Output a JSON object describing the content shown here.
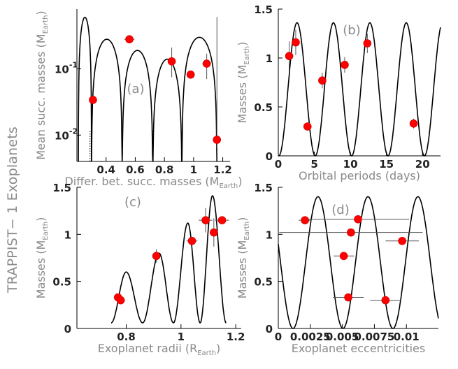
{
  "figure": {
    "side_title": "TRAPPIST− 1 Exoplanets",
    "curve_color": "#000000",
    "point_color": "#ff0000",
    "text_color": "#8a8a8a"
  },
  "chart_data": [
    {
      "panel": "a",
      "tag": "(a)",
      "type": "scatter",
      "title": "",
      "xlabel": "Differ. bet. succ. masses (M",
      "xlabel_sub": "Earth",
      "ylabel": "Mean succ. masses (M",
      "ylabel_sub": "Earth",
      "xscale": "linear",
      "yscale": "log",
      "xlim": [
        0.2,
        1.25
      ],
      "ylim": [
        0.004,
        0.8
      ],
      "xticks": [
        0.4,
        0.6,
        0.8,
        1,
        1.2
      ],
      "xtick_labels": [
        "0.4",
        "0.6",
        "0.8",
        "1",
        "1.2"
      ],
      "ytick_labels": [
        {
          "value": 0.1,
          "base": "10",
          "exp": "-1"
        },
        {
          "value": 0.01,
          "base": "10",
          "exp": "-2"
        }
      ],
      "points": [
        {
          "x": 0.31,
          "y": 0.034,
          "xerr": 0.015
        },
        {
          "x": 0.56,
          "y": 0.28,
          "xerr": 0.035
        },
        {
          "x": 0.85,
          "y": 0.13,
          "xerr": 0.0,
          "yerr_low": 0.055,
          "yerr_high": 0.08
        },
        {
          "x": 0.98,
          "y": 0.082,
          "xerr": 0.02
        },
        {
          "x": 1.09,
          "y": 0.12,
          "xerr": 0.03,
          "yerr_low": 0.05,
          "yerr_high": 0.05
        },
        {
          "x": 1.16,
          "y": 0.0085,
          "xerr": 0.0,
          "yerr_low": 0.002,
          "yerr_high": 0.6
        }
      ],
      "curve": {
        "kind": "log-arches",
        "boundaries": [
          0.21,
          0.3,
          0.51,
          0.72,
          0.92,
          1.16
        ],
        "peaks": [
          0.6,
          0.28,
          0.19,
          0.14,
          0.3
        ],
        "dotted_lines_x": [
          0.29,
          0.3,
          0.51,
          0.72,
          0.92
        ]
      }
    },
    {
      "panel": "b",
      "tag": "(b)",
      "type": "scatter",
      "title": "",
      "xlabel": "Orbital periods (days)",
      "ylabel": "Masses (M",
      "ylabel_sub": "Earth",
      "xlim": [
        0,
        22.5
      ],
      "ylim": [
        0,
        1.5
      ],
      "xticks": [
        0,
        5,
        10,
        15,
        20
      ],
      "xtick_labels": [
        "0",
        "5",
        "10",
        "15",
        "20"
      ],
      "yticks": [
        0,
        0.5,
        1,
        1.5
      ],
      "ytick_labels": [
        "0",
        "0.5",
        "1",
        "1.5"
      ],
      "points": [
        {
          "x": 1.51,
          "y": 1.02,
          "yerr": 0.15
        },
        {
          "x": 2.42,
          "y": 1.16,
          "yerr": 0.13
        },
        {
          "x": 4.05,
          "y": 0.3,
          "yerr": 0.04
        },
        {
          "x": 6.1,
          "y": 0.77,
          "yerr": 0.08
        },
        {
          "x": 9.21,
          "y": 0.93,
          "yerr": 0.08
        },
        {
          "x": 12.35,
          "y": 1.15,
          "yerr": 0.1
        },
        {
          "x": 18.77,
          "y": 0.33,
          "yerr": 0.05
        }
      ],
      "curve": {
        "kind": "cosine",
        "amplitude": 0.68,
        "offset": 0.68,
        "period": 5.05,
        "peak_x": 2.6
      }
    },
    {
      "panel": "c",
      "tag": "(c)",
      "type": "scatter",
      "title": "",
      "xlabel": "Exoplanet radii (R",
      "xlabel_sub": "Earth",
      "ylabel": "Masses (M",
      "ylabel_sub": "Earth",
      "xlim": [
        0.62,
        1.22
      ],
      "ylim": [
        0,
        1.5
      ],
      "xticks": [
        0.8,
        1,
        1.2
      ],
      "xtick_labels": [
        "0.8",
        "1",
        "1.2"
      ],
      "yticks": [
        0,
        0.5,
        1,
        1.5
      ],
      "ytick_labels": [
        "0",
        "0.5",
        "1",
        "1.5"
      ],
      "points": [
        {
          "x": 0.77,
          "y": 0.33,
          "xerr": 0.015
        },
        {
          "x": 0.78,
          "y": 0.3,
          "xerr": 0.0
        },
        {
          "x": 0.91,
          "y": 0.77,
          "xerr": 0.015,
          "yerr": 0.07
        },
        {
          "x": 1.04,
          "y": 0.93,
          "xerr": 0.02
        },
        {
          "x": 1.09,
          "y": 1.15,
          "xerr": 0.025,
          "yerr": 0.13
        },
        {
          "x": 1.12,
          "y": 1.02,
          "xerr": 0.0,
          "yerr": 0.15
        },
        {
          "x": 1.15,
          "y": 1.15,
          "xerr": 0.025
        }
      ],
      "curve": {
        "kind": "growing-bumps",
        "start_x": 0.745,
        "end_x": 1.165,
        "base": 0.06,
        "peaks": [
          {
            "x": 0.8,
            "y": 0.6
          },
          {
            "x": 0.92,
            "y": 0.8
          },
          {
            "x": 1.025,
            "y": 1.12
          },
          {
            "x": 1.115,
            "y": 1.41
          }
        ]
      }
    },
    {
      "panel": "d",
      "tag": "(d)",
      "type": "scatter",
      "title": "",
      "xlabel": "Exoplanet eccentricities",
      "ylabel": "Masses (M",
      "ylabel_sub": "Earth",
      "xlim": [
        0,
        0.0125
      ],
      "ylim": [
        0,
        1.5
      ],
      "xticks": [
        0,
        0.0025,
        0.005,
        0.0075,
        0.01
      ],
      "xtick_labels": [
        "0",
        "0.0025",
        "0.005",
        "0.0075",
        "0.01"
      ],
      "yticks": [
        0,
        0.5,
        1,
        1.5
      ],
      "ytick_labels": [
        "0",
        "0.5",
        "1",
        "1.5"
      ],
      "points": [
        {
          "x": 0.00208,
          "y": 1.15,
          "xerr": 0.0005
        },
        {
          "x": 0.00567,
          "y": 1.02,
          "xerr": 0.0056
        },
        {
          "x": 0.00622,
          "y": 1.16,
          "xerr": 0.004
        },
        {
          "x": 0.00511,
          "y": 0.77,
          "xerr": 0.0008
        },
        {
          "x": 0.00546,
          "y": 0.33,
          "xerr": 0.0012
        },
        {
          "x": 0.00837,
          "y": 0.3,
          "xerr": 0.0012
        },
        {
          "x": 0.00967,
          "y": 0.93,
          "xerr": 0.0013
        }
      ],
      "curve": {
        "kind": "cosine",
        "amplitude": 0.7,
        "offset": 0.7,
        "period": 0.0039,
        "peak_x": 0.0031
      }
    }
  ]
}
